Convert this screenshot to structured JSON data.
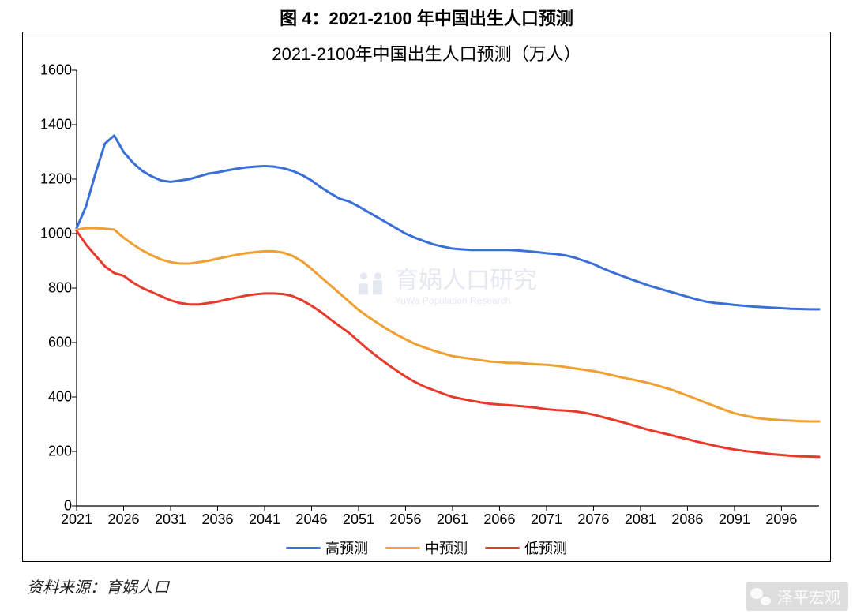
{
  "figure_caption": "图 4：2021-2100 年中国出生人口预测",
  "source_label": "资料来源：育娲人口",
  "watermark_center_main": "育娲人口研究",
  "watermark_center_sub": "YuWa Population Research",
  "watermark_bottom_right": "泽平宏观",
  "chart": {
    "type": "line",
    "title": "2021-2100年中国出生人口预测（万人）",
    "title_fontsize": 22,
    "x_start": 2021,
    "x_end": 2100,
    "xtick_step": 5,
    "xtick_labels": [
      "2021",
      "2026",
      "2031",
      "2036",
      "2041",
      "2046",
      "2051",
      "2056",
      "2061",
      "2066",
      "2071",
      "2076",
      "2081",
      "2086",
      "2091",
      "2096"
    ],
    "ylim": [
      0,
      1600
    ],
    "ytick_step": 200,
    "ytick_labels": [
      "0",
      "200",
      "400",
      "600",
      "800",
      "1000",
      "1200",
      "1400",
      "1600"
    ],
    "axis_color": "#000000",
    "background_color": "#ffffff",
    "grid": false,
    "line_width": 3,
    "tick_fontsize": 18,
    "series": [
      {
        "name": "高预测",
        "legend_label": "高预测",
        "color": "#3a6fd8",
        "x": [
          2021,
          2022,
          2023,
          2024,
          2025,
          2026,
          2027,
          2028,
          2029,
          2030,
          2031,
          2032,
          2033,
          2034,
          2035,
          2036,
          2037,
          2038,
          2039,
          2040,
          2041,
          2042,
          2043,
          2044,
          2045,
          2046,
          2047,
          2048,
          2049,
          2050,
          2051,
          2052,
          2053,
          2054,
          2055,
          2056,
          2057,
          2058,
          2059,
          2060,
          2061,
          2062,
          2063,
          2064,
          2065,
          2066,
          2067,
          2068,
          2069,
          2070,
          2071,
          2072,
          2073,
          2074,
          2075,
          2076,
          2077,
          2078,
          2079,
          2080,
          2081,
          2082,
          2083,
          2084,
          2085,
          2086,
          2087,
          2088,
          2089,
          2090,
          2091,
          2092,
          2093,
          2094,
          2095,
          2096,
          2097,
          2098,
          2099,
          2100
        ],
        "y": [
          1020,
          1100,
          1220,
          1330,
          1360,
          1300,
          1260,
          1230,
          1210,
          1195,
          1190,
          1195,
          1200,
          1210,
          1220,
          1225,
          1232,
          1238,
          1243,
          1246,
          1248,
          1246,
          1240,
          1230,
          1215,
          1195,
          1170,
          1148,
          1128,
          1118,
          1100,
          1080,
          1060,
          1040,
          1020,
          1000,
          985,
          972,
          960,
          952,
          945,
          942,
          940,
          940,
          940,
          940,
          940,
          938,
          935,
          932,
          928,
          925,
          920,
          912,
          900,
          888,
          872,
          858,
          845,
          832,
          820,
          808,
          798,
          788,
          778,
          768,
          758,
          750,
          745,
          742,
          738,
          735,
          732,
          730,
          728,
          726,
          724,
          723,
          722,
          722
        ]
      },
      {
        "name": "中预测",
        "legend_label": "中预测",
        "color": "#f0a030",
        "x": [
          2021,
          2022,
          2023,
          2024,
          2025,
          2026,
          2027,
          2028,
          2029,
          2030,
          2031,
          2032,
          2033,
          2034,
          2035,
          2036,
          2037,
          2038,
          2039,
          2040,
          2041,
          2042,
          2043,
          2044,
          2045,
          2046,
          2047,
          2048,
          2049,
          2050,
          2051,
          2052,
          2053,
          2054,
          2055,
          2056,
          2057,
          2058,
          2059,
          2060,
          2061,
          2062,
          2063,
          2064,
          2065,
          2066,
          2067,
          2068,
          2069,
          2070,
          2071,
          2072,
          2073,
          2074,
          2075,
          2076,
          2077,
          2078,
          2079,
          2080,
          2081,
          2082,
          2083,
          2084,
          2085,
          2086,
          2087,
          2088,
          2089,
          2090,
          2091,
          2092,
          2093,
          2094,
          2095,
          2096,
          2097,
          2098,
          2099,
          2100
        ],
        "y": [
          1015,
          1020,
          1020,
          1018,
          1015,
          985,
          960,
          938,
          920,
          905,
          895,
          890,
          890,
          895,
          900,
          908,
          915,
          922,
          928,
          932,
          935,
          935,
          930,
          918,
          898,
          870,
          840,
          810,
          780,
          750,
          720,
          695,
          672,
          650,
          630,
          612,
          595,
          582,
          570,
          560,
          550,
          545,
          540,
          535,
          530,
          528,
          525,
          525,
          522,
          520,
          518,
          515,
          510,
          505,
          500,
          495,
          488,
          480,
          472,
          465,
          458,
          450,
          440,
          430,
          418,
          405,
          392,
          378,
          365,
          352,
          340,
          332,
          325,
          320,
          317,
          315,
          313,
          311,
          310,
          310
        ]
      },
      {
        "name": "低预测",
        "legend_label": "低预测",
        "color": "#e83a2a",
        "x": [
          2021,
          2022,
          2023,
          2024,
          2025,
          2026,
          2027,
          2028,
          2029,
          2030,
          2031,
          2032,
          2033,
          2034,
          2035,
          2036,
          2037,
          2038,
          2039,
          2040,
          2041,
          2042,
          2043,
          2044,
          2045,
          2046,
          2047,
          2048,
          2049,
          2050,
          2051,
          2052,
          2053,
          2054,
          2055,
          2056,
          2057,
          2058,
          2059,
          2060,
          2061,
          2062,
          2063,
          2064,
          2065,
          2066,
          2067,
          2068,
          2069,
          2070,
          2071,
          2072,
          2073,
          2074,
          2075,
          2076,
          2077,
          2078,
          2079,
          2080,
          2081,
          2082,
          2083,
          2084,
          2085,
          2086,
          2087,
          2088,
          2089,
          2090,
          2091,
          2092,
          2093,
          2094,
          2095,
          2096,
          2097,
          2098,
          2099,
          2100
        ],
        "y": [
          1010,
          960,
          920,
          880,
          855,
          845,
          820,
          800,
          785,
          770,
          755,
          745,
          740,
          740,
          745,
          750,
          758,
          765,
          772,
          777,
          780,
          780,
          778,
          770,
          755,
          735,
          712,
          685,
          660,
          635,
          605,
          575,
          548,
          522,
          498,
          475,
          455,
          438,
          425,
          412,
          400,
          393,
          386,
          380,
          375,
          372,
          370,
          367,
          364,
          360,
          355,
          352,
          350,
          347,
          342,
          335,
          326,
          317,
          308,
          298,
          288,
          278,
          270,
          262,
          253,
          245,
          236,
          228,
          220,
          213,
          207,
          202,
          198,
          194,
          190,
          187,
          184,
          182,
          181,
          180
        ]
      }
    ],
    "legend_position": "bottom-center"
  }
}
